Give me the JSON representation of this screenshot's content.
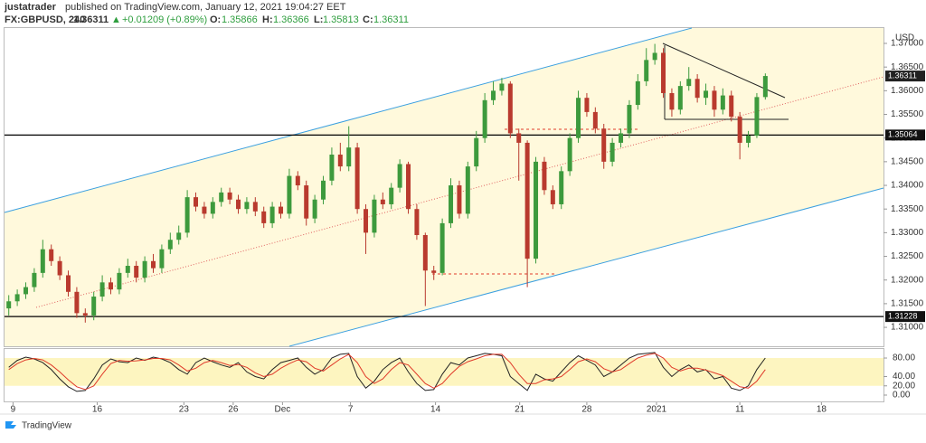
{
  "header": {
    "author": "justatrader",
    "published": "published on TradingView.com, January 12, 2021 19:04:27 EET",
    "symbol": "FX:GBPUSD, 240",
    "change": "+0.01209 (+0.89%)",
    "o": "O:",
    "h": "H:",
    "l": "L:",
    "c": "C:",
    "brand": "TradingView"
  },
  "chart_data": {
    "type": "candlestick",
    "up_color": "#3d9a3d",
    "down_color": "#b93a2e",
    "grid": false,
    "y_axis_label": "USD",
    "open": [
      1.314,
      1.3155,
      1.317,
      1.3185,
      1.3215,
      1.3265,
      1.324,
      1.321,
      1.3175,
      1.313,
      1.3125,
      1.3165,
      1.3195,
      1.318,
      1.3215,
      1.323,
      1.3205,
      1.324,
      1.3225,
      1.3265,
      1.3285,
      1.33,
      1.3375,
      1.3355,
      1.334,
      1.3365,
      1.3385,
      1.337,
      1.335,
      1.3365,
      1.3345,
      1.332,
      1.3355,
      1.334,
      1.342,
      1.34,
      1.333,
      1.337,
      1.341,
      1.3465,
      1.344,
      1.348,
      1.335,
      1.33,
      1.337,
      1.336,
      1.3395,
      1.3445,
      1.335,
      1.3295,
      1.322,
      1.3215,
      1.332,
      1.34,
      1.334,
      1.344,
      1.35,
      1.358,
      1.36,
      1.3615,
      1.351,
      1.349,
      1.3245,
      1.345,
      1.339,
      1.336,
      1.343,
      1.35,
      1.3585,
      1.3555,
      1.352,
      1.345,
      1.349,
      1.351,
      1.357,
      1.362,
      1.3665,
      1.368,
      1.3595,
      1.356,
      1.361,
      1.3625,
      1.3585,
      1.36,
      1.356,
      1.359,
      1.3545,
      1.349,
      1.3505,
      1.35866
    ],
    "high": [
      1.3168,
      1.318,
      1.3195,
      1.3225,
      1.3285,
      1.3275,
      1.325,
      1.322,
      1.3185,
      1.314,
      1.3175,
      1.321,
      1.3205,
      1.3225,
      1.3245,
      1.324,
      1.325,
      1.3255,
      1.3275,
      1.33,
      1.3315,
      1.339,
      1.3385,
      1.3365,
      1.3375,
      1.3395,
      1.3395,
      1.338,
      1.3375,
      1.3375,
      1.3355,
      1.3365,
      1.3365,
      1.3435,
      1.343,
      1.341,
      1.338,
      1.342,
      1.348,
      1.349,
      1.3525,
      1.349,
      1.336,
      1.338,
      1.3385,
      1.3405,
      1.3455,
      1.345,
      1.336,
      1.33,
      1.323,
      1.333,
      1.3415,
      1.341,
      1.345,
      1.3515,
      1.3595,
      1.362,
      1.3627,
      1.362,
      1.352,
      1.3495,
      1.346,
      1.346,
      1.34,
      1.344,
      1.351,
      1.36,
      1.3595,
      1.3565,
      1.353,
      1.35,
      1.352,
      1.358,
      1.3635,
      1.369,
      1.3699,
      1.369,
      1.3605,
      1.362,
      1.365,
      1.3635,
      1.3615,
      1.361,
      1.3605,
      1.36,
      1.3555,
      1.3515,
      1.3595,
      1.36366
    ],
    "low": [
      1.3125,
      1.3145,
      1.316,
      1.3175,
      1.3205,
      1.323,
      1.32,
      1.3165,
      1.312,
      1.311,
      1.3115,
      1.3155,
      1.317,
      1.317,
      1.3205,
      1.3195,
      1.3195,
      1.3215,
      1.3215,
      1.3255,
      1.3275,
      1.329,
      1.3345,
      1.333,
      1.333,
      1.3355,
      1.336,
      1.334,
      1.334,
      1.3335,
      1.331,
      1.331,
      1.333,
      1.333,
      1.339,
      1.3315,
      1.332,
      1.336,
      1.34,
      1.343,
      1.343,
      1.334,
      1.3255,
      1.329,
      1.335,
      1.335,
      1.3385,
      1.334,
      1.3285,
      1.3145,
      1.32,
      1.321,
      1.331,
      1.333,
      1.333,
      1.343,
      1.349,
      1.357,
      1.359,
      1.35,
      1.341,
      1.3185,
      1.3235,
      1.338,
      1.335,
      1.335,
      1.342,
      1.349,
      1.3545,
      1.351,
      1.3435,
      1.344,
      1.348,
      1.35,
      1.356,
      1.361,
      1.3655,
      1.3585,
      1.3545,
      1.355,
      1.36,
      1.3575,
      1.357,
      1.3545,
      1.355,
      1.3535,
      1.3455,
      1.348,
      1.35,
      1.35813
    ],
    "close": [
      1.3155,
      1.317,
      1.3185,
      1.3215,
      1.3265,
      1.324,
      1.321,
      1.3175,
      1.313,
      1.3125,
      1.3165,
      1.3195,
      1.318,
      1.3215,
      1.323,
      1.3205,
      1.324,
      1.3225,
      1.3265,
      1.3285,
      1.33,
      1.3375,
      1.3355,
      1.334,
      1.3365,
      1.3385,
      1.337,
      1.335,
      1.3365,
      1.3345,
      1.332,
      1.3355,
      1.334,
      1.342,
      1.34,
      1.333,
      1.337,
      1.341,
      1.3465,
      1.344,
      1.348,
      1.335,
      1.33,
      1.337,
      1.336,
      1.3395,
      1.3445,
      1.335,
      1.3295,
      1.322,
      1.3215,
      1.332,
      1.34,
      1.334,
      1.344,
      1.35,
      1.358,
      1.36,
      1.3615,
      1.351,
      1.349,
      1.3245,
      1.345,
      1.339,
      1.336,
      1.343,
      1.35,
      1.3585,
      1.3555,
      1.352,
      1.345,
      1.349,
      1.351,
      1.357,
      1.362,
      1.3665,
      1.368,
      1.3595,
      1.356,
      1.361,
      1.3625,
      1.3585,
      1.36,
      1.356,
      1.359,
      1.3545,
      1.349,
      1.3505,
      1.35866,
      1.36311
    ],
    "xlim": [
      -0.5,
      102.9
    ],
    "xticks": [
      {
        "value": 0.5,
        "label": "9"
      },
      {
        "value": 10.4,
        "label": "16"
      },
      {
        "value": 20.6,
        "label": "23"
      },
      {
        "value": 26.4,
        "label": "26"
      },
      {
        "value": 32.2,
        "label": "Dec"
      },
      {
        "value": 40.2,
        "label": "7"
      },
      {
        "value": 50.2,
        "label": "14"
      },
      {
        "value": 60.1,
        "label": "21"
      },
      {
        "value": 68,
        "label": "28"
      },
      {
        "value": 76.2,
        "label": "2021"
      },
      {
        "value": 86,
        "label": "11"
      },
      {
        "value": 95.6,
        "label": "18"
      }
    ],
    "ylim": [
      1.306,
      1.37344
    ],
    "yticks": [
      {
        "value": 1.31,
        "label": "1.31000"
      },
      {
        "value": 1.315,
        "label": "1.31500"
      },
      {
        "value": 1.32,
        "label": "1.32000"
      },
      {
        "value": 1.325,
        "label": "1.32500"
      },
      {
        "value": 1.33,
        "label": "1.33000"
      },
      {
        "value": 1.335,
        "label": "1.33500"
      },
      {
        "value": 1.34,
        "label": "1.34000"
      },
      {
        "value": 1.345,
        "label": "1.34500"
      },
      {
        "value": 1.35,
        "label": "1.35000"
      },
      {
        "value": 1.355,
        "label": "1.35500"
      },
      {
        "value": 1.36,
        "label": "1.36000"
      },
      {
        "value": 1.365,
        "label": "1.36500"
      },
      {
        "value": 1.37,
        "label": "1.37000"
      }
    ],
    "hlines": [
      1.35064,
      1.31228
    ],
    "stoch": {
      "type": "line",
      "ylim": [
        -15.6,
        101.5
      ],
      "band": [
        20,
        80
      ],
      "yticks": [
        {
          "value": 0,
          "label": "0.00"
        },
        {
          "value": 20,
          "label": "20.00"
        },
        {
          "value": 40,
          "label": "40.00"
        },
        {
          "value": 80,
          "label": "80.00"
        }
      ],
      "series": [
        {
          "color": "#222222",
          "values": [
            60,
            75,
            82,
            78,
            70,
            55,
            35,
            18,
            8,
            10,
            35,
            65,
            78,
            72,
            70,
            80,
            75,
            82,
            78,
            70,
            55,
            45,
            70,
            80,
            72,
            65,
            60,
            70,
            50,
            40,
            35,
            55,
            70,
            75,
            80,
            60,
            45,
            55,
            80,
            88,
            90,
            40,
            15,
            30,
            55,
            70,
            80,
            50,
            25,
            10,
            12,
            45,
            70,
            65,
            80,
            85,
            90,
            88,
            85,
            40,
            25,
            10,
            45,
            35,
            30,
            50,
            70,
            85,
            75,
            65,
            40,
            50,
            65,
            80,
            88,
            90,
            92,
            60,
            40,
            55,
            65,
            50,
            55,
            35,
            40,
            15,
            10,
            20,
            55,
            80
          ]
        },
        {
          "color": "#e03a2a",
          "values": [
            55,
            68,
            76,
            79,
            76,
            65,
            50,
            33,
            18,
            12,
            20,
            45,
            68,
            75,
            73,
            74,
            76,
            79,
            79,
            76,
            65,
            52,
            58,
            70,
            75,
            70,
            64,
            66,
            60,
            48,
            40,
            45,
            58,
            68,
            76,
            72,
            58,
            52,
            65,
            78,
            88,
            70,
            40,
            25,
            35,
            55,
            70,
            65,
            45,
            25,
            15,
            25,
            45,
            62,
            72,
            78,
            85,
            88,
            88,
            70,
            45,
            25,
            25,
            33,
            35,
            40,
            55,
            72,
            78,
            72,
            57,
            50,
            55,
            68,
            80,
            86,
            90,
            80,
            60,
            52,
            58,
            58,
            54,
            48,
            42,
            30,
            18,
            15,
            30,
            55
          ]
        }
      ]
    }
  }
}
